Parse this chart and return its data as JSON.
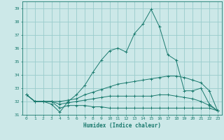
{
  "xlabel": "Humidex (Indice chaleur)",
  "background_color": "#cce8e8",
  "grid_color": "#99cccc",
  "line_color": "#1a7a6e",
  "xlim": [
    -0.5,
    23.5
  ],
  "ylim": [
    31,
    39.5
  ],
  "yticks": [
    31,
    32,
    33,
    34,
    35,
    36,
    37,
    38,
    39
  ],
  "xticks": [
    0,
    1,
    2,
    3,
    4,
    5,
    6,
    7,
    8,
    9,
    10,
    11,
    12,
    13,
    14,
    15,
    16,
    17,
    18,
    19,
    20,
    21,
    22,
    23
  ],
  "series": [
    [
      32.5,
      32.0,
      32.0,
      31.8,
      31.2,
      32.0,
      32.5,
      33.2,
      34.2,
      35.1,
      35.8,
      36.0,
      35.7,
      37.1,
      37.8,
      38.9,
      37.6,
      35.5,
      35.1,
      32.8,
      32.8,
      33.0,
      31.8,
      31.3
    ],
    [
      32.5,
      32.0,
      32.0,
      32.0,
      32.0,
      32.1,
      32.2,
      32.5,
      32.7,
      32.9,
      33.1,
      33.3,
      33.4,
      33.5,
      33.6,
      33.7,
      33.8,
      33.9,
      33.9,
      33.8,
      33.6,
      33.4,
      32.8,
      31.3
    ],
    [
      32.5,
      32.0,
      32.0,
      32.0,
      31.8,
      31.9,
      32.0,
      32.1,
      32.2,
      32.3,
      32.4,
      32.4,
      32.4,
      32.4,
      32.4,
      32.4,
      32.5,
      32.5,
      32.4,
      32.3,
      32.2,
      32.0,
      31.7,
      31.3
    ],
    [
      32.5,
      32.0,
      32.0,
      32.0,
      31.5,
      31.7,
      31.7,
      31.7,
      31.6,
      31.6,
      31.5,
      31.5,
      31.5,
      31.5,
      31.5,
      31.5,
      31.5,
      31.5,
      31.5,
      31.5,
      31.5,
      31.5,
      31.5,
      31.3
    ]
  ]
}
